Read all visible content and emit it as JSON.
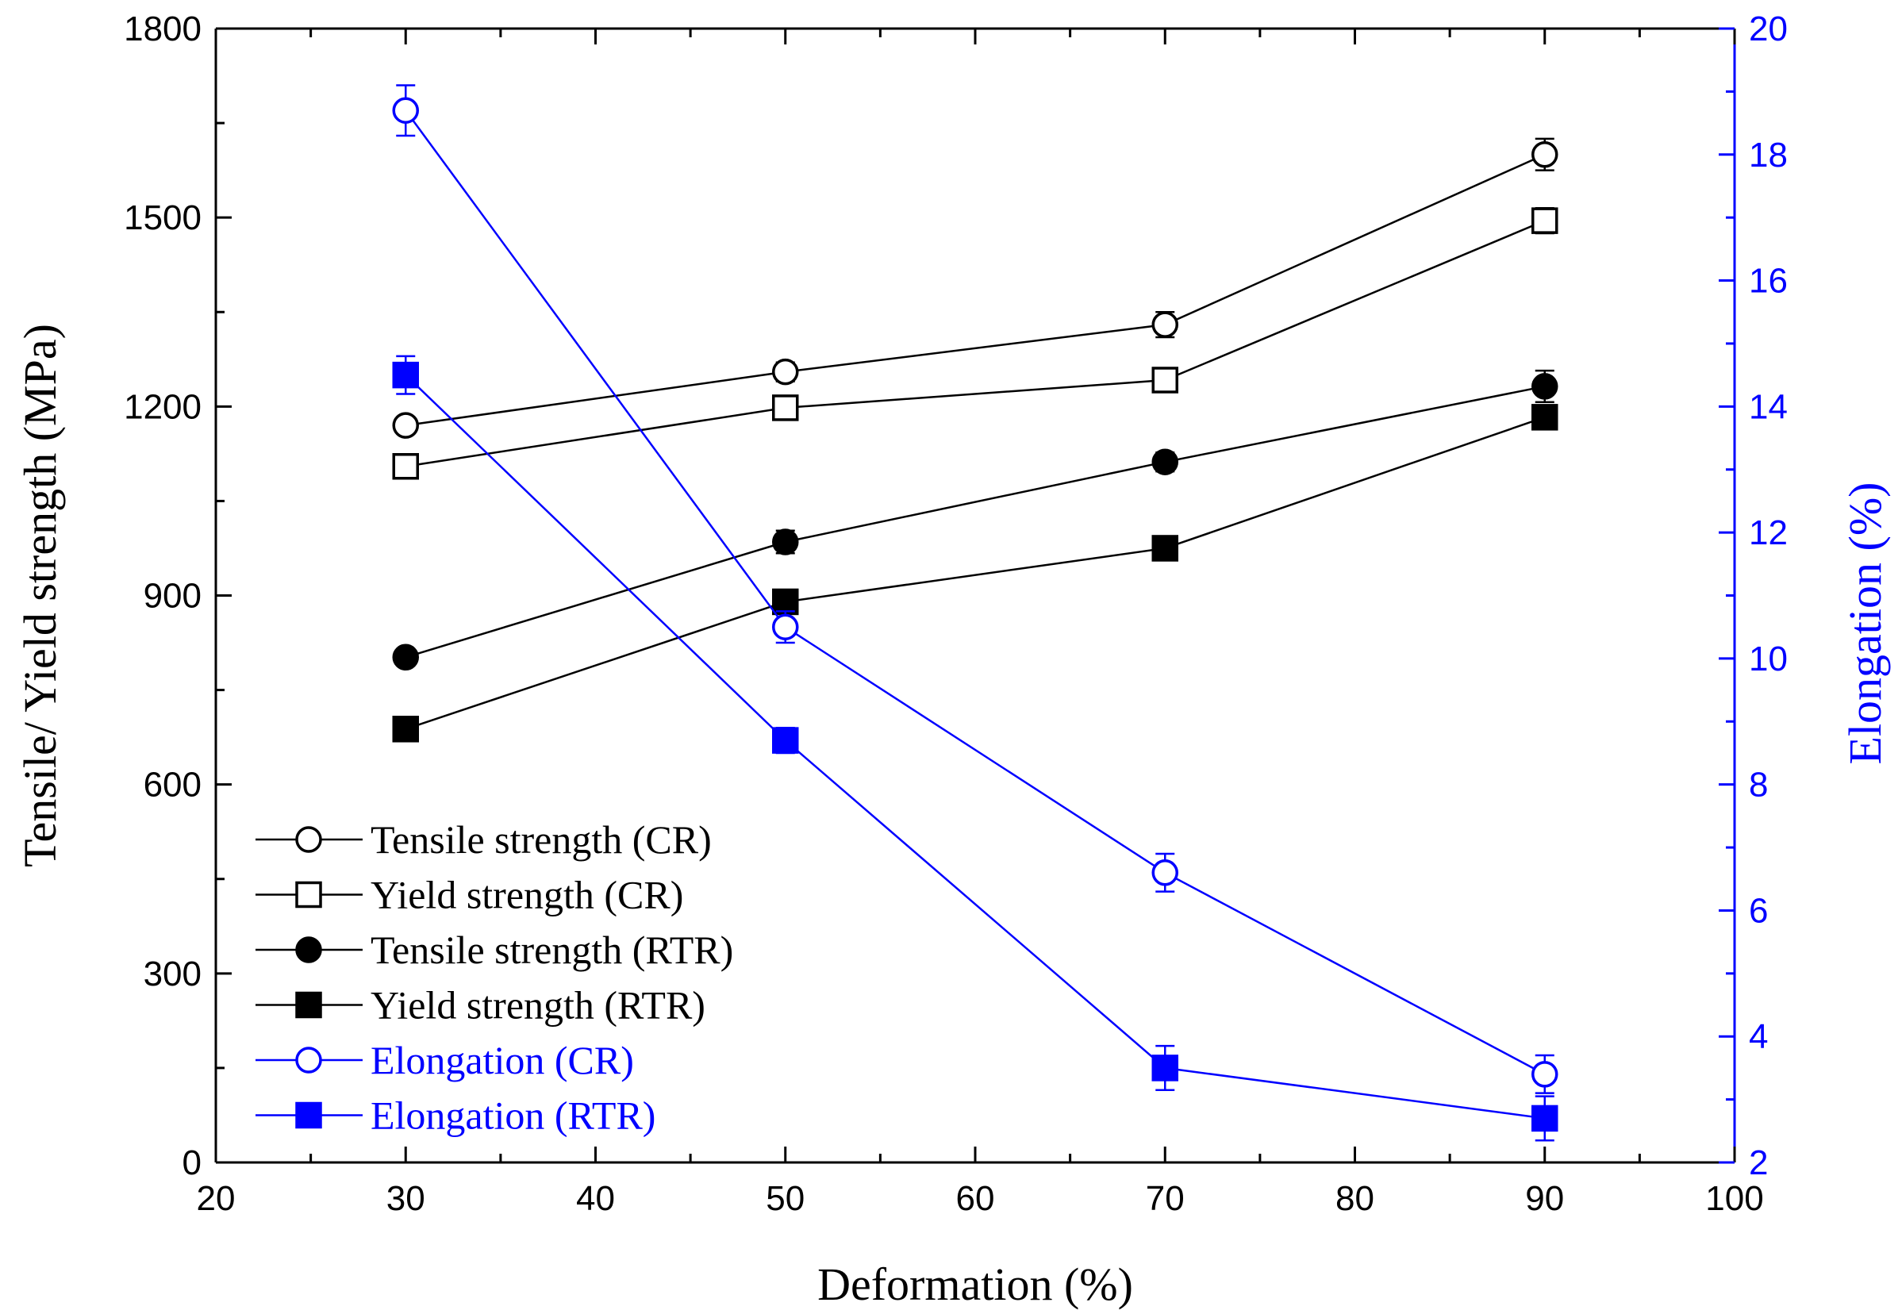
{
  "chart_data": {
    "type": "line",
    "title": "",
    "xlabel": "Deformation (%)",
    "ylabel": "Tensile/ Yield strength (MPa)",
    "y2label": "Elongation (%)",
    "xlim": [
      20,
      100
    ],
    "ylim": [
      0,
      1800
    ],
    "y2lim": [
      2,
      20
    ],
    "x_ticks": [
      20,
      30,
      40,
      50,
      60,
      70,
      80,
      90,
      100
    ],
    "y_ticks": [
      0,
      300,
      600,
      900,
      1200,
      1500,
      1800
    ],
    "y2_ticks": [
      2,
      4,
      6,
      8,
      10,
      12,
      14,
      16,
      18,
      20
    ],
    "x": [
      30,
      50,
      70,
      90
    ],
    "legend_position": "bottom-left",
    "series": [
      {
        "name": "Tensile strength (CR)",
        "axis": "left",
        "marker": "circle-open",
        "color": "#000000",
        "values": [
          1170,
          1255,
          1330,
          1600
        ],
        "errors": [
          0,
          15,
          20,
          25
        ]
      },
      {
        "name": "Yield strength (CR)",
        "axis": "left",
        "marker": "square-open",
        "color": "#000000",
        "values": [
          1105,
          1198,
          1242,
          1495
        ],
        "errors": [
          0,
          0,
          15,
          20
        ]
      },
      {
        "name": "Tensile strength (RTR)",
        "axis": "left",
        "marker": "circle-filled",
        "color": "#000000",
        "values": [
          802,
          985,
          1112,
          1232
        ],
        "errors": [
          0,
          18,
          15,
          25
        ]
      },
      {
        "name": "Yield strength (RTR)",
        "axis": "left",
        "marker": "square-filled",
        "color": "#000000",
        "values": [
          688,
          890,
          975,
          1183
        ],
        "errors": [
          0,
          0,
          12,
          15
        ]
      },
      {
        "name": "Elongation (CR)",
        "axis": "right",
        "marker": "circle-open",
        "color": "#0000ff",
        "values": [
          18.7,
          10.5,
          6.6,
          3.4
        ],
        "errors": [
          0.4,
          0.25,
          0.3,
          0.3
        ]
      },
      {
        "name": "Elongation (RTR)",
        "axis": "right",
        "marker": "square-filled",
        "color": "#0000ff",
        "values": [
          14.5,
          8.7,
          3.5,
          2.7
        ],
        "errors": [
          0.3,
          0.2,
          0.35,
          0.35
        ]
      }
    ]
  }
}
